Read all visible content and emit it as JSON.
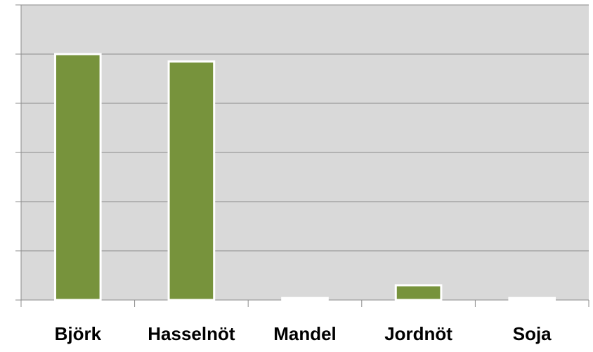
{
  "chart_data": {
    "type": "bar",
    "categories": [
      "Björk",
      "Hasselnöt",
      "Mandel",
      "Jordnöt",
      "Soja"
    ],
    "values": [
      5,
      4.85,
      0.04,
      0.3,
      0.04
    ],
    "color": "#77933c",
    "ylim": [
      0,
      6
    ],
    "yticks": [
      0,
      1,
      2,
      3,
      4,
      5,
      6
    ],
    "grid": true
  }
}
